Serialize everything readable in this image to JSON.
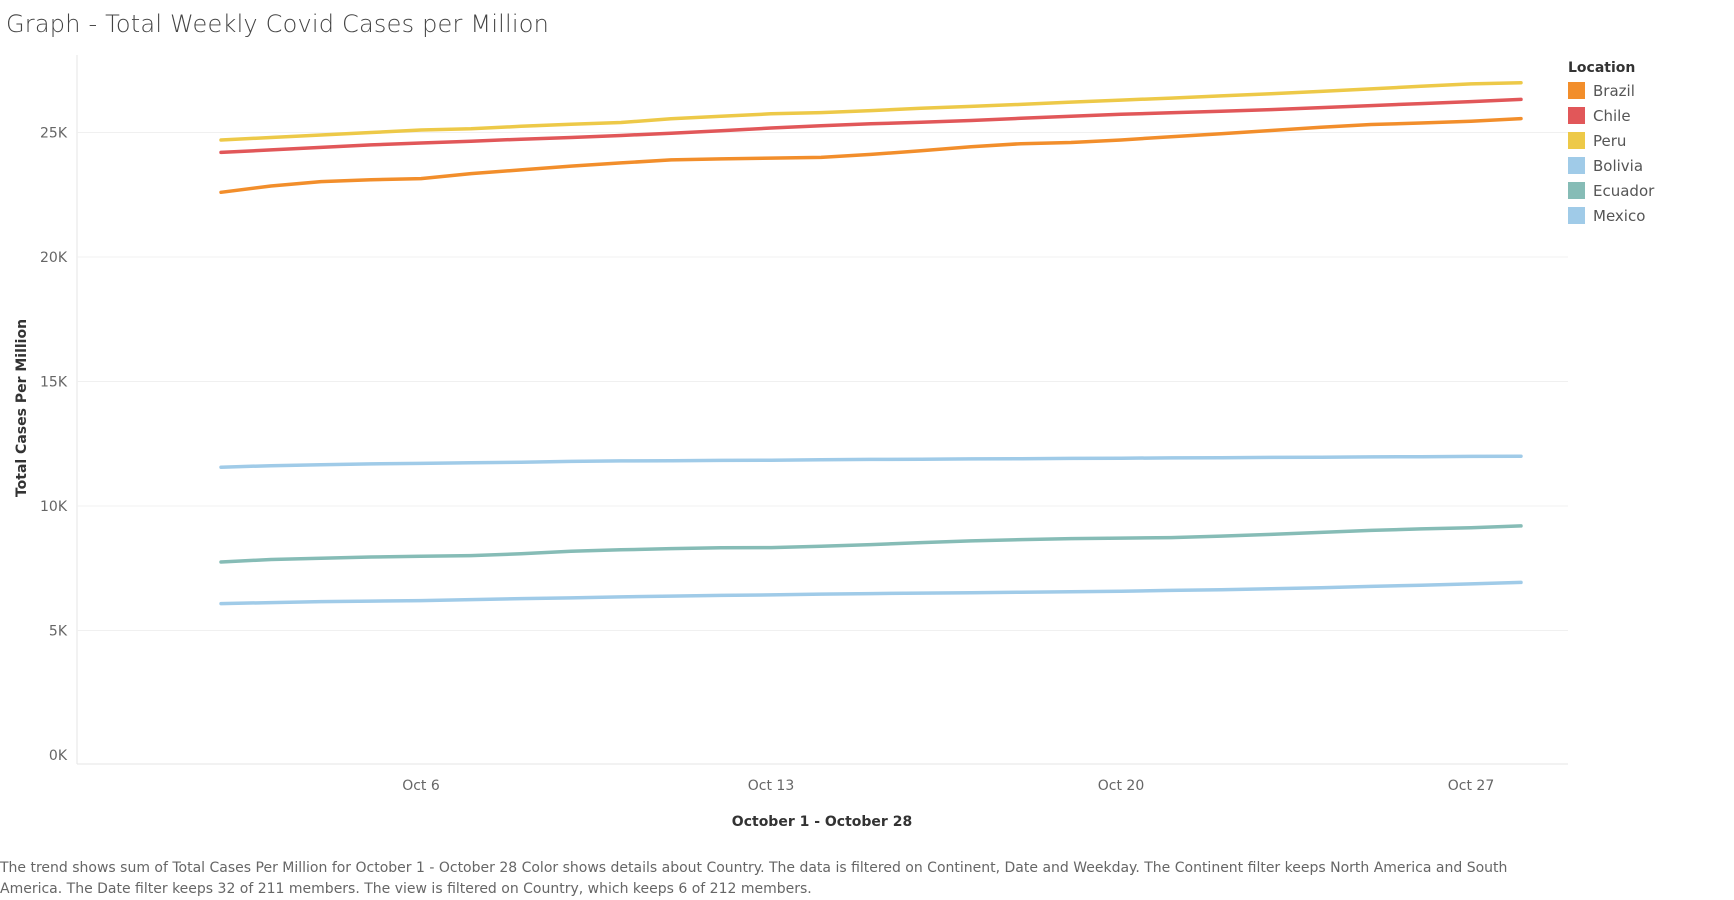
{
  "page": {
    "title": "Graph - Total Weekly Covid Cases per Million",
    "caption": "The trend shows sum of Total Cases Per Million for October 1 - October 28  Color shows details about Country. The data is filtered on Continent, Date and Weekday. The Continent filter keeps North America and South America. The Date filter keeps 32 of 211 members. The view is filtered on Country, which keeps 6 of 212 members."
  },
  "legend": {
    "title": "Location",
    "items": [
      {
        "label": "Brazil",
        "color": "#F28E2B"
      },
      {
        "label": "Chile",
        "color": "#E15759"
      },
      {
        "label": "Peru",
        "color": "#EDC948"
      },
      {
        "label": "Bolivia",
        "color": "#A0CBE8"
      },
      {
        "label": "Ecuador",
        "color": "#86BCB6"
      },
      {
        "label": "Mexico",
        "color": "#A0CBE8"
      }
    ]
  },
  "chart_data": {
    "type": "line",
    "title": "Graph - Total Weekly Covid Cases per Million",
    "xlabel": "October 1 - October 28",
    "ylabel": "Total Cases Per Million",
    "x": [
      "Oct 2",
      "Oct 3",
      "Oct 4",
      "Oct 5",
      "Oct 6",
      "Oct 7",
      "Oct 8",
      "Oct 9",
      "Oct 10",
      "Oct 11",
      "Oct 12",
      "Oct 13",
      "Oct 14",
      "Oct 15",
      "Oct 16",
      "Oct 17",
      "Oct 18",
      "Oct 19",
      "Oct 20",
      "Oct 21",
      "Oct 22",
      "Oct 23",
      "Oct 24",
      "Oct 25",
      "Oct 26",
      "Oct 27",
      "Oct 28"
    ],
    "x_ticks": [
      "Oct 6",
      "Oct 13",
      "Oct 20",
      "Oct 27"
    ],
    "x_range": [
      "Sep 30",
      "Oct 29"
    ],
    "y_ticks": [
      0,
      5000,
      10000,
      15000,
      20000,
      25000
    ],
    "y_tick_labels": [
      "0K",
      "5K",
      "10K",
      "15K",
      "20K",
      "25K"
    ],
    "ylim": [
      0,
      28000
    ],
    "grid": true,
    "legend_position": "right",
    "series": [
      {
        "name": "Peru",
        "color": "#EDC948",
        "values": [
          24700,
          24800,
          24900,
          25000,
          25100,
          25150,
          25250,
          25330,
          25400,
          25550,
          25650,
          25750,
          25800,
          25880,
          25970,
          26050,
          26130,
          26220,
          26300,
          26380,
          26470,
          26560,
          26650,
          26750,
          26860,
          26950,
          27000
        ]
      },
      {
        "name": "Chile",
        "color": "#E15759",
        "values": [
          24200,
          24300,
          24400,
          24500,
          24580,
          24650,
          24730,
          24800,
          24880,
          24970,
          25070,
          25180,
          25270,
          25350,
          25410,
          25480,
          25570,
          25650,
          25730,
          25790,
          25850,
          25920,
          26000,
          26080,
          26160,
          26240,
          26330
        ]
      },
      {
        "name": "Brazil",
        "color": "#F28E2B",
        "values": [
          22600,
          22850,
          23030,
          23100,
          23150,
          23350,
          23500,
          23650,
          23780,
          23900,
          23940,
          23970,
          24000,
          24120,
          24270,
          24430,
          24550,
          24600,
          24700,
          24830,
          24950,
          25080,
          25210,
          25320,
          25380,
          25450,
          25560
        ]
      },
      {
        "name": "Bolivia",
        "color": "#A0CBE8",
        "values": [
          11560,
          11620,
          11660,
          11690,
          11710,
          11740,
          11760,
          11790,
          11810,
          11820,
          11830,
          11840,
          11860,
          11870,
          11880,
          11890,
          11900,
          11910,
          11920,
          11930,
          11940,
          11950,
          11960,
          11970,
          11980,
          11990,
          12000
        ]
      },
      {
        "name": "Ecuador",
        "color": "#86BCB6",
        "values": [
          7750,
          7850,
          7900,
          7950,
          7980,
          8010,
          8080,
          8180,
          8240,
          8290,
          8320,
          8330,
          8380,
          8450,
          8530,
          8600,
          8650,
          8690,
          8710,
          8730,
          8790,
          8860,
          8940,
          9020,
          9080,
          9130,
          9200
        ]
      },
      {
        "name": "Mexico",
        "color": "#A0CBE8",
        "values": [
          6080,
          6120,
          6160,
          6180,
          6200,
          6240,
          6280,
          6310,
          6350,
          6380,
          6410,
          6430,
          6460,
          6480,
          6500,
          6520,
          6540,
          6560,
          6580,
          6610,
          6640,
          6680,
          6720,
          6770,
          6820,
          6870,
          6930
        ]
      }
    ]
  }
}
